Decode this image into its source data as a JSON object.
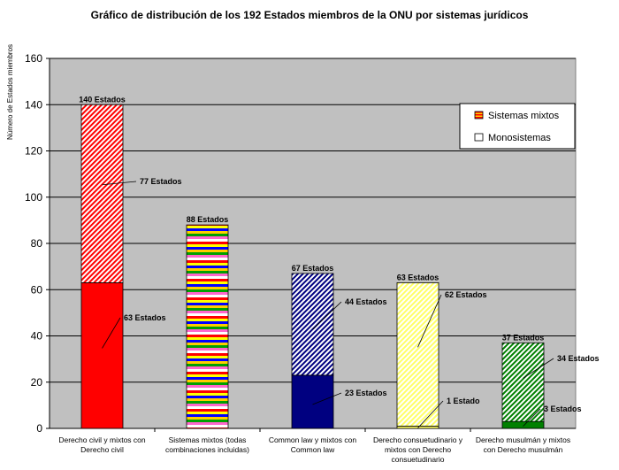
{
  "chart_data": {
    "type": "bar",
    "stacked": true,
    "title": "Gráfico de distribución de los 192 Estados miembros de la ONU por sistemas jurídicos",
    "ylabel": "Número de Estados miembros",
    "xlabel": "",
    "ylim": [
      0,
      160
    ],
    "yticks": [
      0,
      20,
      40,
      60,
      80,
      100,
      120,
      140,
      160
    ],
    "grid": true,
    "legend_position": "top-right",
    "categories": [
      [
        "Derecho civil y mixtos con",
        "Derecho civil"
      ],
      [
        "Sistemas mixtos (todas",
        "combinaciones incluidas)"
      ],
      [
        "Common law y mixtos con",
        "Common law"
      ],
      [
        "Derecho consuetudinario y",
        "mixtos con Derecho",
        "consuetudinario"
      ],
      [
        "Derecho musulmán y mixtos",
        "con Derecho musulmán"
      ]
    ],
    "series": [
      {
        "name": "Monosistemas",
        "values": [
          63,
          0,
          23,
          1,
          3
        ]
      },
      {
        "name": "Sistemas mixtos",
        "values": [
          77,
          88,
          44,
          62,
          34
        ]
      }
    ],
    "bar_colors": [
      "#ff0000",
      "multicolor",
      "#000080",
      "#ffff66",
      "#008000"
    ],
    "total_labels": [
      "140 Estados",
      "88 Estados",
      "67 Estados",
      "63 Estados",
      "37 Estados"
    ],
    "mono_labels": [
      "63 Estados",
      "",
      "23 Estados",
      "1 Estado",
      "3 Estados"
    ],
    "mixed_labels": [
      "77 Estados",
      "",
      "44 Estados",
      "62 Estados",
      "34 Estados"
    ],
    "legend": [
      {
        "label": "Sistemas mixtos",
        "style": "stripes"
      },
      {
        "label": "Monosistemas",
        "style": "solid"
      }
    ],
    "plot_background": "#c0c0c0"
  }
}
